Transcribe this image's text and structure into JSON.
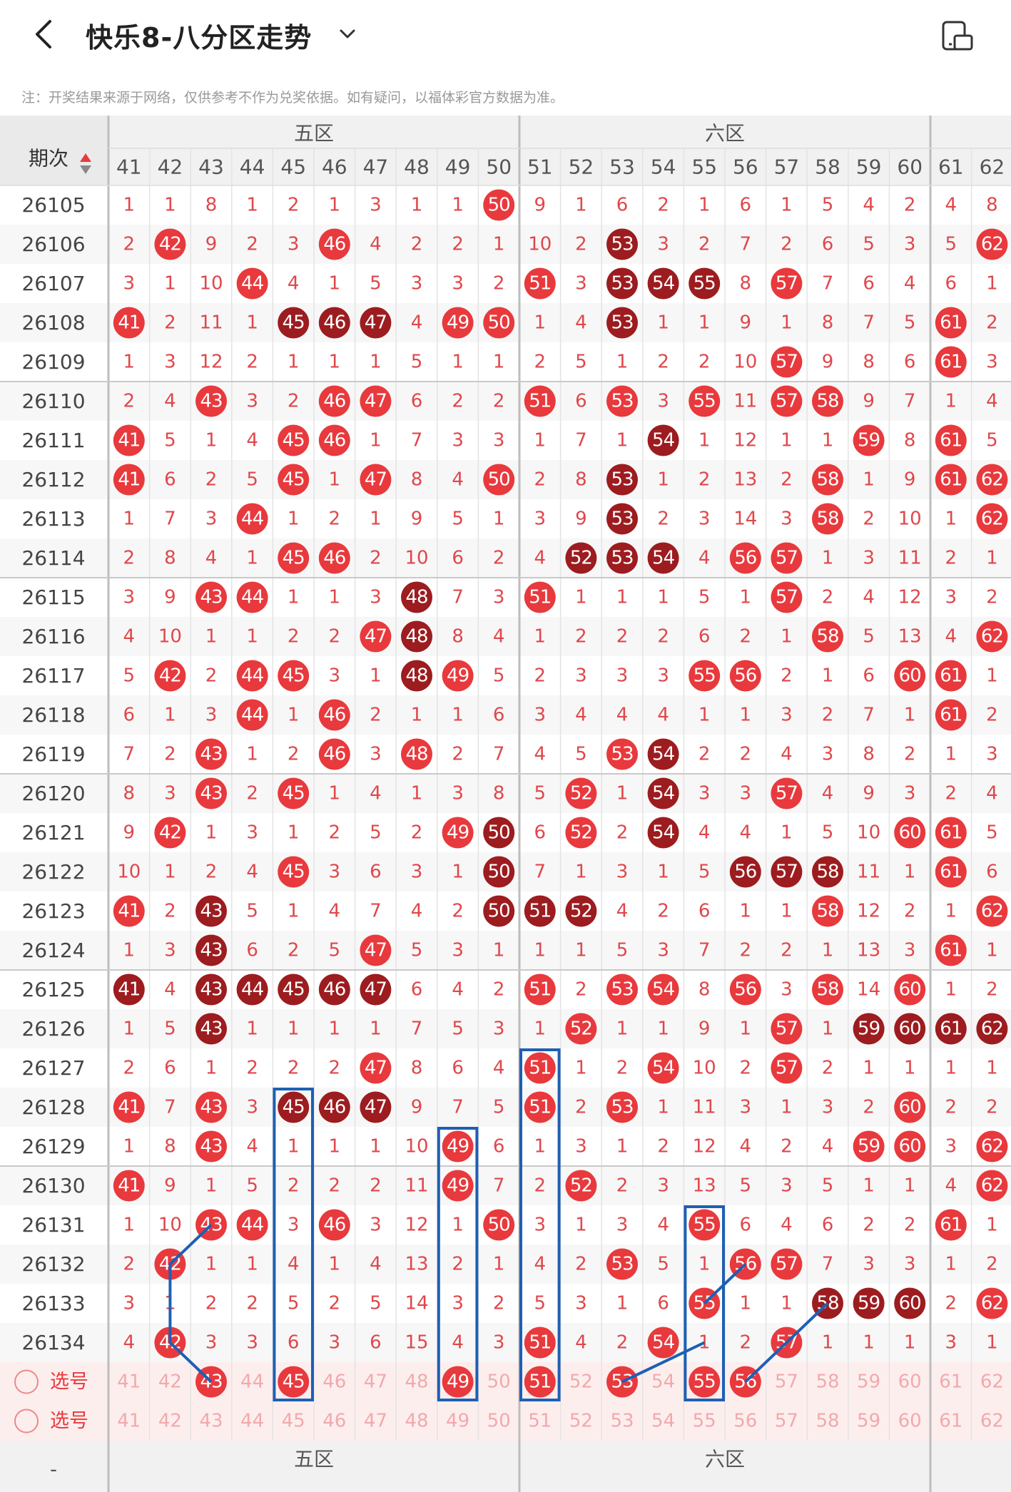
{
  "header": {
    "title": "快乐8-八分区走势",
    "notice": "注：开奖结果来源于网络，仅供参考不作为兑奖依据。如有疑问，以福体彩官方数据为准。"
  },
  "table": {
    "period_header": "期次",
    "zones": [
      {
        "label": "五区",
        "cols": [
          41,
          42,
          43,
          44,
          45,
          46,
          47,
          48,
          49,
          50
        ]
      },
      {
        "label": "六区",
        "cols": [
          51,
          52,
          53,
          54,
          55,
          56,
          57,
          58,
          59,
          60
        ]
      },
      {
        "label": "",
        "cols": [
          61,
          62
        ]
      }
    ],
    "columns": [
      41,
      42,
      43,
      44,
      45,
      46,
      47,
      48,
      49,
      50,
      51,
      52,
      53,
      54,
      55,
      56,
      57,
      58,
      59,
      60,
      61,
      62
    ],
    "rows": [
      {
        "period": "26105",
        "cells": [
          1,
          1,
          8,
          1,
          2,
          1,
          3,
          1,
          1,
          "50",
          9,
          1,
          6,
          2,
          1,
          6,
          1,
          5,
          4,
          2,
          4,
          8
        ]
      },
      {
        "period": "26106",
        "cells": [
          2,
          "42",
          9,
          2,
          3,
          "46",
          4,
          2,
          2,
          1,
          10,
          2,
          "53",
          3,
          2,
          7,
          2,
          6,
          5,
          3,
          5,
          "62"
        ]
      },
      {
        "period": "26107",
        "cells": [
          3,
          1,
          10,
          "44",
          4,
          1,
          5,
          3,
          3,
          2,
          "51",
          3,
          "53",
          "54",
          "55",
          8,
          "57",
          7,
          6,
          4,
          6,
          1
        ]
      },
      {
        "period": "26108",
        "cells": [
          "41",
          2,
          11,
          1,
          "45",
          "46",
          "47",
          4,
          "49",
          "50",
          1,
          4,
          "53",
          1,
          1,
          9,
          1,
          8,
          7,
          5,
          "61",
          2
        ]
      },
      {
        "period": "26109",
        "cells": [
          1,
          3,
          12,
          2,
          1,
          1,
          1,
          5,
          1,
          1,
          2,
          5,
          1,
          2,
          2,
          10,
          "57",
          9,
          8,
          6,
          "61",
          3
        ]
      },
      {
        "period": "26110",
        "cells": [
          2,
          4,
          "43",
          3,
          2,
          "46",
          "47",
          6,
          2,
          2,
          "51",
          6,
          "53",
          3,
          "55",
          11,
          "57",
          "58",
          9,
          7,
          1,
          4
        ]
      },
      {
        "period": "26111",
        "cells": [
          "41",
          5,
          1,
          4,
          "45",
          "46",
          1,
          7,
          3,
          3,
          1,
          7,
          1,
          "54",
          1,
          12,
          1,
          1,
          "59",
          8,
          "61",
          5
        ]
      },
      {
        "period": "26112",
        "cells": [
          "41",
          6,
          2,
          5,
          "45",
          1,
          "47",
          8,
          4,
          "50",
          2,
          8,
          "53",
          1,
          2,
          13,
          2,
          "58",
          1,
          9,
          "61",
          "62"
        ]
      },
      {
        "period": "26113",
        "cells": [
          1,
          7,
          3,
          "44",
          1,
          2,
          1,
          9,
          5,
          1,
          3,
          9,
          "53",
          2,
          3,
          14,
          3,
          "58",
          2,
          10,
          1,
          "62"
        ]
      },
      {
        "period": "26114",
        "cells": [
          2,
          8,
          4,
          1,
          "45",
          "46",
          2,
          10,
          6,
          2,
          4,
          "52",
          "53",
          "54",
          4,
          "56",
          "57",
          1,
          3,
          11,
          2,
          1
        ]
      },
      {
        "period": "26115",
        "cells": [
          3,
          9,
          "43",
          "44",
          1,
          1,
          3,
          "48",
          7,
          3,
          "51",
          1,
          1,
          1,
          5,
          1,
          "57",
          2,
          4,
          12,
          3,
          2
        ]
      },
      {
        "period": "26116",
        "cells": [
          4,
          10,
          1,
          1,
          2,
          2,
          "47",
          "48",
          8,
          4,
          1,
          2,
          2,
          2,
          6,
          2,
          1,
          "58",
          5,
          13,
          4,
          "62"
        ]
      },
      {
        "period": "26117",
        "cells": [
          5,
          "42",
          2,
          "44",
          "45",
          3,
          1,
          "48",
          "49",
          5,
          2,
          3,
          3,
          3,
          "55",
          "56",
          2,
          1,
          6,
          "60",
          "61",
          1
        ]
      },
      {
        "period": "26118",
        "cells": [
          6,
          1,
          3,
          "44",
          1,
          "46",
          2,
          1,
          1,
          6,
          3,
          4,
          4,
          4,
          1,
          1,
          3,
          2,
          7,
          1,
          "61",
          2
        ]
      },
      {
        "period": "26119",
        "cells": [
          7,
          2,
          "43",
          1,
          2,
          "46",
          3,
          "48",
          2,
          7,
          4,
          5,
          "53",
          "54",
          2,
          2,
          4,
          3,
          8,
          2,
          1,
          3
        ]
      },
      {
        "period": "26120",
        "cells": [
          8,
          3,
          "43",
          2,
          "45",
          1,
          4,
          1,
          3,
          8,
          5,
          "52",
          1,
          "54",
          3,
          3,
          "57",
          4,
          9,
          3,
          2,
          4
        ]
      },
      {
        "period": "26121",
        "cells": [
          9,
          "42",
          1,
          3,
          1,
          2,
          5,
          2,
          "49",
          "50",
          6,
          "52",
          2,
          "54",
          4,
          4,
          1,
          5,
          10,
          "60",
          "61",
          5
        ]
      },
      {
        "period": "26122",
        "cells": [
          10,
          1,
          2,
          4,
          "45",
          3,
          6,
          3,
          1,
          "50",
          7,
          1,
          3,
          1,
          5,
          "56",
          "57",
          "58",
          11,
          1,
          "61",
          6
        ]
      },
      {
        "period": "26123",
        "cells": [
          "41",
          2,
          "43",
          5,
          1,
          4,
          7,
          4,
          2,
          "50",
          "51",
          "52",
          4,
          2,
          6,
          1,
          1,
          "58",
          12,
          2,
          1,
          "62"
        ]
      },
      {
        "period": "26124",
        "cells": [
          1,
          3,
          "43",
          6,
          2,
          5,
          "47",
          5,
          3,
          1,
          1,
          1,
          5,
          3,
          7,
          2,
          2,
          1,
          13,
          3,
          "61",
          1
        ]
      },
      {
        "period": "26125",
        "cells": [
          "41",
          4,
          "43",
          "44",
          "45",
          "46",
          "47",
          6,
          4,
          2,
          "51",
          2,
          "53",
          "54",
          8,
          "56",
          3,
          "58",
          14,
          "60",
          1,
          2
        ]
      },
      {
        "period": "26126",
        "cells": [
          1,
          5,
          "43",
          1,
          1,
          1,
          1,
          7,
          5,
          3,
          1,
          "52",
          1,
          1,
          9,
          1,
          "57",
          1,
          "59",
          "60",
          "61",
          "62"
        ]
      },
      {
        "period": "26127",
        "cells": [
          2,
          6,
          1,
          2,
          2,
          2,
          "47",
          8,
          6,
          4,
          "51",
          1,
          2,
          "54",
          10,
          2,
          "57",
          2,
          1,
          1,
          1,
          1
        ]
      },
      {
        "period": "26128",
        "cells": [
          "41",
          7,
          "43",
          3,
          "45",
          "46",
          "47",
          9,
          7,
          5,
          "51",
          2,
          "53",
          1,
          11,
          3,
          1,
          3,
          2,
          "60",
          2,
          2
        ]
      },
      {
        "period": "26129",
        "cells": [
          1,
          8,
          "43",
          4,
          1,
          1,
          1,
          10,
          "49",
          6,
          1,
          3,
          1,
          2,
          12,
          4,
          2,
          4,
          "59",
          "60",
          3,
          "62"
        ]
      },
      {
        "period": "26130",
        "cells": [
          "41",
          9,
          1,
          5,
          2,
          2,
          2,
          11,
          "49",
          7,
          2,
          "52",
          2,
          3,
          13,
          5,
          3,
          5,
          1,
          1,
          4,
          "62"
        ]
      },
      {
        "period": "26131",
        "cells": [
          1,
          10,
          "43",
          "44",
          3,
          "46",
          3,
          12,
          1,
          "50",
          3,
          1,
          3,
          4,
          "55",
          6,
          4,
          6,
          2,
          2,
          "61",
          1
        ]
      },
      {
        "period": "26132",
        "cells": [
          2,
          "42",
          1,
          1,
          4,
          1,
          4,
          13,
          2,
          1,
          4,
          2,
          "53",
          5,
          1,
          "56",
          "57",
          7,
          3,
          3,
          1,
          2
        ]
      },
      {
        "period": "26133",
        "cells": [
          3,
          1,
          2,
          2,
          5,
          2,
          5,
          14,
          3,
          2,
          5,
          3,
          1,
          6,
          "55",
          1,
          1,
          "58",
          "59",
          "60",
          2,
          "62"
        ]
      },
      {
        "period": "26134",
        "cells": [
          4,
          "42",
          3,
          3,
          6,
          3,
          6,
          15,
          4,
          3,
          "51",
          4,
          2,
          "54",
          1,
          2,
          "57",
          1,
          1,
          1,
          3,
          1
        ]
      }
    ],
    "pick_rows": [
      {
        "label": "选号",
        "picked": [
          43,
          45,
          49,
          51,
          53,
          55,
          56
        ]
      },
      {
        "label": "选号",
        "picked": []
      }
    ],
    "footer_zones": [
      "五区",
      "六区"
    ],
    "footer_left": "-"
  },
  "colors": {
    "hit": "#e8393d",
    "dark": "#9c1c1f",
    "lines": "#1f5fb4"
  },
  "icons": {
    "back": "chevron-left-icon",
    "dropdown": "chevron-down-icon",
    "device": "device-icon",
    "sort": "sort-icon",
    "radio": "radio-icon"
  }
}
